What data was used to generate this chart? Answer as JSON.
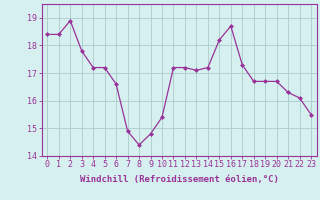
{
  "x": [
    0,
    1,
    2,
    3,
    4,
    5,
    6,
    7,
    8,
    9,
    10,
    11,
    12,
    13,
    14,
    15,
    16,
    17,
    18,
    19,
    20,
    21,
    22,
    23
  ],
  "y": [
    18.4,
    18.4,
    18.9,
    17.8,
    17.2,
    17.2,
    16.6,
    14.9,
    14.4,
    14.8,
    15.4,
    17.2,
    17.2,
    17.1,
    17.2,
    18.2,
    18.7,
    17.3,
    16.7,
    16.7,
    16.7,
    16.3,
    16.1,
    15.5
  ],
  "line_color": "#993399",
  "marker": "D",
  "marker_size": 2,
  "bg_color": "#d6f0f0",
  "grid_color": "#aacccc",
  "xlabel": "Windchill (Refroidissement éolien,°C)",
  "xlabel_color": "#993399",
  "tick_color": "#993399",
  "ylim": [
    14,
    19.5
  ],
  "yticks": [
    14,
    15,
    16,
    17,
    18,
    19
  ],
  "xlim": [
    -0.5,
    23.5
  ],
  "xticks": [
    0,
    1,
    2,
    3,
    4,
    5,
    6,
    7,
    8,
    9,
    10,
    11,
    12,
    13,
    14,
    15,
    16,
    17,
    18,
    19,
    20,
    21,
    22,
    23
  ],
  "spine_color": "#993399",
  "label_fontsize": 6.5,
  "tick_fontsize": 6.0
}
